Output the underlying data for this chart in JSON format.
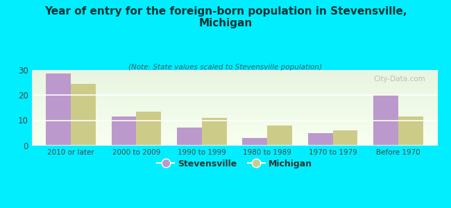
{
  "title": "Year of entry for the foreign-born population in Stevensville,\nMichigan",
  "subtitle": "(Note: State values scaled to Stevensville population)",
  "categories": [
    "2010 or later",
    "2000 to 2009",
    "1990 to 1999",
    "1980 to 1989",
    "1970 to 1979",
    "Before 1970"
  ],
  "stevensville_values": [
    28.5,
    11.5,
    7.0,
    3.0,
    5.0,
    20.0
  ],
  "michigan_values": [
    24.5,
    13.5,
    11.0,
    8.0,
    6.0,
    11.5
  ],
  "stevensville_color": "#bb99cc",
  "michigan_color": "#cccc88",
  "background_color": "#00eeff",
  "plot_bg_top": "#e8f5e0",
  "plot_bg_bottom": "#f8fff0",
  "title_color": "#003333",
  "subtitle_color": "#336666",
  "tick_color": "#444444",
  "ylim": [
    0,
    30
  ],
  "yticks": [
    0,
    10,
    20,
    30
  ],
  "bar_width": 0.38,
  "legend_labels": [
    "Stevensville",
    "Michigan"
  ],
  "watermark": "City-Data.com"
}
